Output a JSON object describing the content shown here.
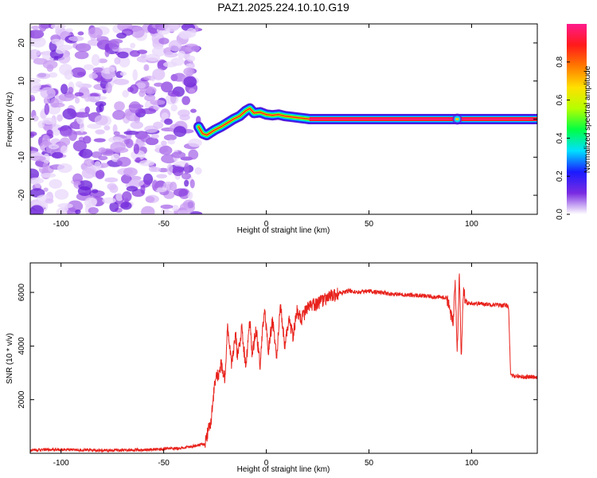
{
  "title": "PAZ1.2025.224.10.10.G19",
  "chart_data": [
    {
      "type": "heatmap",
      "title": "PAZ1.2025.224.10.10.G19",
      "xlabel": "Height of straight line (km)",
      "ylabel": "Frequency (Hz)",
      "xlim": [
        -115,
        132
      ],
      "ylim": [
        -25,
        25
      ],
      "x_ticks": [
        -100,
        -50,
        0,
        50,
        100
      ],
      "y_ticks": [
        -20,
        -10,
        0,
        10,
        20
      ],
      "colorbar": {
        "label": "Normalized spectral amplitude",
        "range": [
          0,
          1
        ],
        "ticks": [
          0.0,
          0.2,
          0.4,
          0.6,
          0.8
        ],
        "colors": [
          "#ffffff",
          "#7a2be2",
          "#1a1aff",
          "#00e0ff",
          "#00ff44",
          "#b5ff00",
          "#ffe000",
          "#ff7a00",
          "#ff1a1a",
          "#ff1a8c"
        ]
      },
      "noise_region": {
        "x_range": [
          -115,
          -33
        ],
        "freq_range": [
          -25,
          25
        ]
      },
      "tone_trace": {
        "x": [
          -33,
          -31,
          -29,
          -27,
          -25,
          -22,
          -19,
          -16,
          -13,
          -10,
          -8,
          -6,
          -3,
          0,
          3,
          6,
          9,
          12,
          15,
          18,
          21,
          132
        ],
        "freq": [
          -2.0,
          -3.8,
          -4.2,
          -3.5,
          -2.8,
          -2.0,
          -1.0,
          0.0,
          0.8,
          2.2,
          2.8,
          1.6,
          1.8,
          1.2,
          1.0,
          1.2,
          0.8,
          0.6,
          0.4,
          0.2,
          0.0,
          0.0
        ]
      },
      "grid": false
    },
    {
      "type": "line",
      "xlabel": "Height of straight line (km)",
      "ylabel": "SNR (10 * v/v)",
      "xlim": [
        -115,
        132
      ],
      "ylim": [
        0,
        7100
      ],
      "x_ticks": [
        -100,
        -50,
        0,
        50,
        100
      ],
      "y_ticks": [
        2000,
        4000,
        6000
      ],
      "line_color": "#e8221c",
      "series": [
        {
          "x": [
            -115,
            -100,
            -80,
            -60,
            -40,
            -30,
            -27,
            -25,
            -23,
            -22,
            -20,
            -19,
            -17,
            -15,
            -14,
            -12,
            -10,
            -8,
            -7,
            -5,
            -3,
            -1,
            1,
            3,
            5,
            7,
            9,
            11,
            13,
            15,
            17,
            20,
            25,
            30,
            35,
            40,
            45,
            50,
            60,
            70,
            80,
            88,
            91,
            92,
            93,
            94,
            95,
            96,
            97,
            100,
            110,
            118,
            119,
            120,
            125,
            132
          ],
          "y": [
            120,
            140,
            110,
            130,
            200,
            350,
            1200,
            2700,
            3000,
            3300,
            2700,
            4800,
            3300,
            4500,
            3500,
            4700,
            3200,
            4900,
            3700,
            4600,
            3300,
            5400,
            3800,
            5000,
            3600,
            5500,
            4000,
            5000,
            4400,
            5300,
            5000,
            5400,
            5600,
            5800,
            5950,
            6050,
            6000,
            6050,
            5950,
            5900,
            5850,
            5800,
            4800,
            6600,
            3800,
            6800,
            3500,
            6100,
            5600,
            5600,
            5550,
            5500,
            2900,
            2900,
            2850,
            2850
          ]
        }
      ],
      "grid": false
    }
  ]
}
